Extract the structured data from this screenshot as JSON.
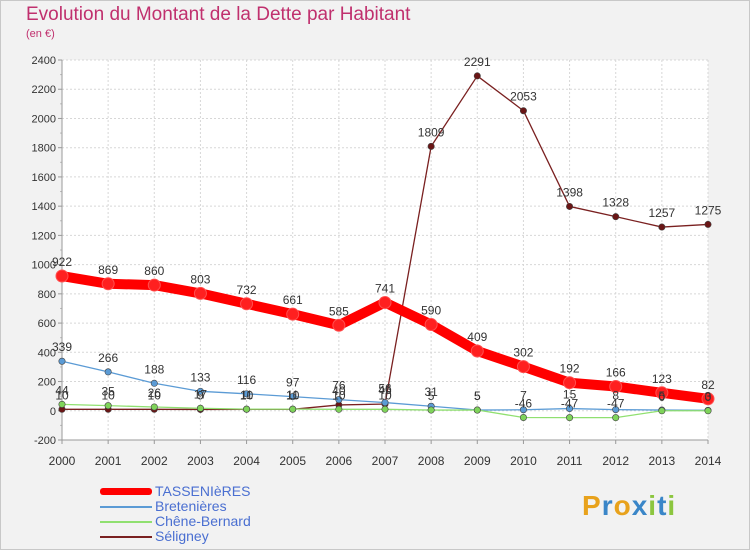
{
  "header": {
    "title": "Evolution du Montant de la Dette par Habitant",
    "subtitle": "(en €)"
  },
  "logo": {
    "letters": [
      "P",
      "r",
      "o",
      "x",
      "i",
      "t",
      "i"
    ],
    "colors": [
      "#e8a21c",
      "#3a86c8",
      "#e8a21c",
      "#3a86c8",
      "#8cc63f",
      "#3a86c8",
      "#8cc63f"
    ]
  },
  "chart_data": {
    "type": "line",
    "title": "Evolution du Montant de la Dette par Habitant",
    "ylabel": "(en €)",
    "x": [
      2000,
      2001,
      2002,
      2003,
      2004,
      2005,
      2006,
      2007,
      2008,
      2009,
      2010,
      2011,
      2012,
      2013,
      2014
    ],
    "ylim": [
      -200,
      2400
    ],
    "yticks": [
      -200,
      0,
      200,
      400,
      600,
      800,
      1000,
      1200,
      1400,
      1600,
      1800,
      2000,
      2200,
      2400
    ],
    "grid": true,
    "legend_position": "bottom-left",
    "series": [
      {
        "name": "TASSENIèRES",
        "color": "#ff0000",
        "marker": "#ff2020",
        "values": [
          922,
          869,
          860,
          803,
          732,
          661,
          585,
          741,
          590,
          409,
          302,
          192,
          166,
          123,
          82
        ],
        "labels": [
          "922",
          "869",
          "860",
          "803",
          "732",
          "661",
          "585",
          "741",
          "590",
          "409",
          "302",
          "192",
          "166",
          "123",
          "82"
        ]
      },
      {
        "name": "Bretenières",
        "color": "#5b9bd5",
        "marker": "#5b9bd5",
        "values": [
          339,
          266,
          188,
          133,
          116,
          97,
          76,
          56,
          31,
          5,
          7,
          15,
          8,
          5,
          3
        ],
        "labels": [
          "339",
          "266",
          "188",
          "133",
          "116",
          "97",
          "76",
          "56",
          "31",
          "5",
          "7",
          "15",
          "8",
          "5",
          "3"
        ]
      },
      {
        "name": "Chêne-Bernard",
        "color": "#90e070",
        "marker": "#7fd45a",
        "values": [
          44,
          35,
          26,
          17,
          11,
          11,
          10,
          10,
          5,
          5,
          -46,
          -47,
          -47,
          0,
          0
        ],
        "labels": [
          "44",
          "35",
          "26",
          "17",
          "11",
          "11",
          "10",
          "10",
          "5",
          "5",
          "-46",
          "-47",
          "-47",
          "0",
          "0"
        ]
      },
      {
        "name": "Séligney",
        "color": "#7a2020",
        "marker": "#6a1515",
        "values": [
          10,
          10,
          10,
          9,
          10,
          10,
          40,
          46,
          1809,
          2291,
          2053,
          1398,
          1328,
          1257,
          1275
        ],
        "labels": [
          "10",
          "10",
          "10",
          "9",
          "10",
          "10",
          "40",
          "46",
          "1809",
          "2291",
          "2053",
          "1398",
          "1328",
          "1257",
          "1275"
        ]
      }
    ]
  }
}
